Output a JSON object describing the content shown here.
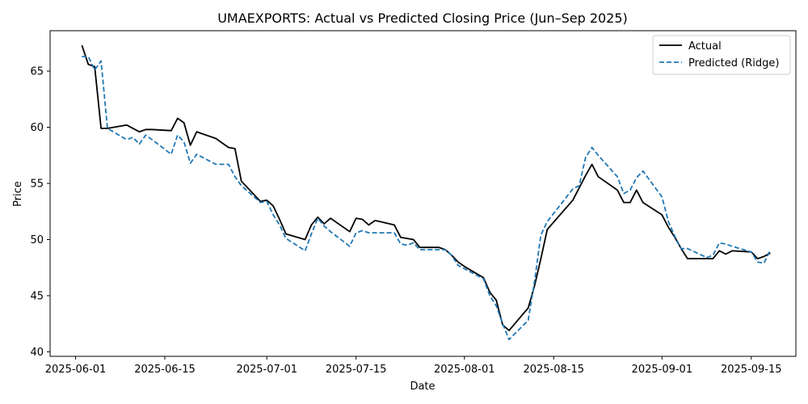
{
  "chart_data": {
    "type": "line",
    "title": "UMAEXPORTS: Actual vs Predicted Closing Price (Jun–Sep 2025)",
    "xlabel": "Date",
    "ylabel": "Price",
    "xlim": [
      "2025-05-28",
      "2025-09-22"
    ],
    "ylim": [
      39.6,
      68.6
    ],
    "x_ticks": [
      "2025-06-01",
      "2025-06-15",
      "2025-07-01",
      "2025-07-15",
      "2025-08-01",
      "2025-08-15",
      "2025-09-01",
      "2025-09-15"
    ],
    "y_ticks": [
      40,
      45,
      50,
      55,
      60,
      65
    ],
    "grid": false,
    "legend_position": "top-right",
    "x": [
      "2025-06-02",
      "2025-06-03",
      "2025-06-04",
      "2025-06-05",
      "2025-06-06",
      "2025-06-09",
      "2025-06-10",
      "2025-06-11",
      "2025-06-12",
      "2025-06-13",
      "2025-06-16",
      "2025-06-17",
      "2025-06-18",
      "2025-06-19",
      "2025-06-20",
      "2025-06-23",
      "2025-06-24",
      "2025-06-25",
      "2025-06-26",
      "2025-06-27",
      "2025-06-30",
      "2025-07-01",
      "2025-07-02",
      "2025-07-03",
      "2025-07-04",
      "2025-07-07",
      "2025-07-08",
      "2025-07-09",
      "2025-07-10",
      "2025-07-11",
      "2025-07-14",
      "2025-07-15",
      "2025-07-16",
      "2025-07-17",
      "2025-07-18",
      "2025-07-21",
      "2025-07-22",
      "2025-07-23",
      "2025-07-24",
      "2025-07-25",
      "2025-07-28",
      "2025-07-29",
      "2025-07-30",
      "2025-07-31",
      "2025-08-01",
      "2025-08-04",
      "2025-08-05",
      "2025-08-06",
      "2025-08-07",
      "2025-08-08",
      "2025-08-11",
      "2025-08-12",
      "2025-08-13",
      "2025-08-14",
      "2025-08-18",
      "2025-08-19",
      "2025-08-20",
      "2025-08-21",
      "2025-08-22",
      "2025-08-25",
      "2025-08-26",
      "2025-08-27",
      "2025-08-28",
      "2025-08-29",
      "2025-09-01",
      "2025-09-02",
      "2025-09-03",
      "2025-09-04",
      "2025-09-05",
      "2025-09-08",
      "2025-09-09",
      "2025-09-10",
      "2025-09-11",
      "2025-09-12",
      "2025-09-15",
      "2025-09-16",
      "2025-09-17",
      "2025-09-18"
    ],
    "series": [
      {
        "name": "Actual",
        "color": "#000000",
        "style": "solid",
        "values": [
          67.3,
          65.6,
          65.4,
          59.9,
          59.9,
          60.2,
          59.9,
          59.6,
          59.8,
          59.8,
          59.7,
          60.8,
          60.4,
          58.4,
          59.6,
          59.0,
          58.6,
          58.2,
          58.1,
          55.2,
          53.4,
          53.5,
          53.0,
          51.8,
          50.5,
          50.0,
          51.3,
          52.0,
          51.4,
          51.9,
          50.7,
          51.9,
          51.8,
          51.3,
          51.7,
          51.3,
          50.2,
          50.1,
          50.0,
          49.3,
          49.3,
          49.1,
          48.6,
          48.0,
          47.6,
          46.6,
          45.3,
          44.6,
          42.4,
          41.9,
          43.9,
          45.9,
          48.3,
          50.9,
          53.5,
          54.6,
          55.7,
          56.7,
          55.6,
          54.4,
          53.3,
          53.3,
          54.4,
          53.3,
          52.2,
          51.1,
          50.2,
          49.2,
          48.3,
          48.3,
          48.3,
          49.0,
          48.7,
          49.0,
          48.9,
          48.3,
          48.5,
          48.8
        ]
      },
      {
        "name": "Predicted (Ridge)",
        "color": "#1f77b4",
        "style": "dashed",
        "values": [
          66.3,
          66.3,
          65.1,
          65.9,
          59.9,
          58.9,
          59.1,
          58.5,
          59.3,
          58.9,
          57.6,
          59.3,
          58.7,
          56.8,
          57.6,
          56.7,
          56.7,
          56.7,
          55.6,
          54.8,
          53.3,
          53.4,
          52.2,
          51.3,
          50.1,
          49.0,
          50.5,
          51.9,
          51.2,
          50.7,
          49.4,
          50.6,
          50.8,
          50.6,
          50.6,
          50.6,
          49.6,
          49.5,
          49.7,
          49.1,
          49.1,
          49.1,
          48.6,
          47.7,
          47.4,
          46.5,
          45.0,
          44.1,
          42.5,
          41.1,
          42.8,
          46.3,
          50.4,
          51.6,
          54.5,
          54.8,
          57.3,
          58.2,
          57.5,
          55.6,
          54.1,
          54.4,
          55.5,
          56.1,
          53.8,
          51.6,
          50.3,
          49.2,
          49.2,
          48.4,
          48.6,
          49.7,
          49.6,
          49.4,
          48.9,
          48.0,
          47.9,
          49.1
        ]
      }
    ]
  }
}
